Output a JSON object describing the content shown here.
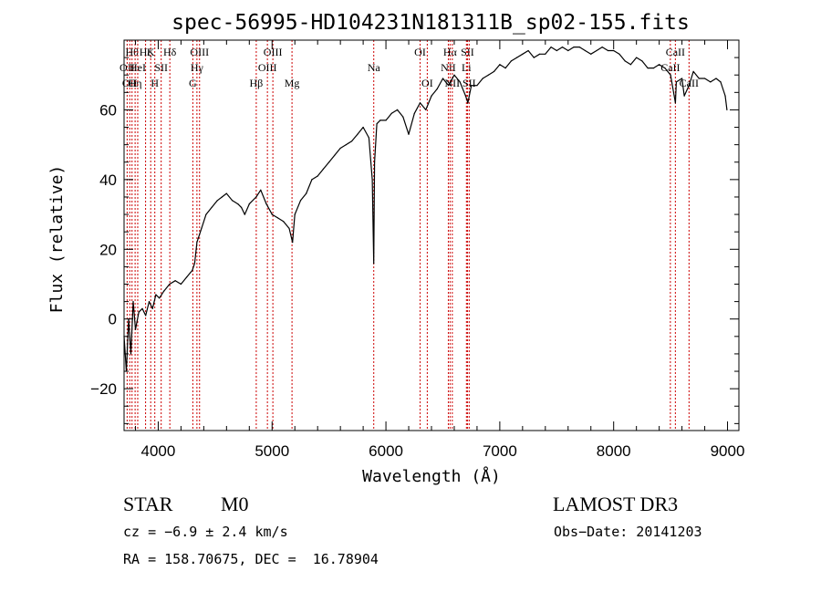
{
  "chart_data": {
    "type": "line",
    "title": "spec-56995-HD104231N181311B_sp02-155.fits",
    "xlabel": "Wavelength (Å)",
    "ylabel": "Flux (relative)",
    "xlim": [
      3700,
      9100
    ],
    "ylim": [
      -32,
      80
    ],
    "x_ticks": [
      4000,
      5000,
      6000,
      7000,
      8000,
      9000
    ],
    "y_ticks": [
      -20,
      0,
      20,
      40,
      60
    ],
    "line_color": "#000000",
    "marker_color": "#cc0000",
    "series": [
      {
        "x": [
          3700,
          3720,
          3740,
          3760,
          3780,
          3800,
          3830,
          3860,
          3890,
          3920,
          3950,
          3980,
          4010,
          4050,
          4100,
          4150,
          4200,
          4250,
          4300,
          4320,
          4340,
          4380,
          4420,
          4470,
          4520,
          4560,
          4600,
          4650,
          4700,
          4730,
          4760,
          4800,
          4860,
          4900,
          4950,
          5000,
          5050,
          5100,
          5150,
          5180,
          5200,
          5250,
          5300,
          5350,
          5400,
          5450,
          5500,
          5550,
          5600,
          5650,
          5700,
          5750,
          5800,
          5850,
          5880,
          5893,
          5900,
          5920,
          5950,
          6000,
          6050,
          6100,
          6150,
          6200,
          6250,
          6300,
          6350,
          6400,
          6450,
          6500,
          6550,
          6600,
          6650,
          6700,
          6720,
          6750,
          6800,
          6850,
          6900,
          6950,
          7000,
          7050,
          7100,
          7150,
          7200,
          7250,
          7300,
          7350,
          7400,
          7450,
          7500,
          7550,
          7600,
          7650,
          7700,
          7750,
          7800,
          7850,
          7900,
          7950,
          8000,
          8050,
          8100,
          8150,
          8200,
          8250,
          8300,
          8350,
          8400,
          8450,
          8500,
          8542,
          8550,
          8600,
          8620,
          8662,
          8700,
          8750,
          8800,
          8850,
          8900,
          8940,
          8960,
          8980,
          8995
        ],
        "y": [
          -5,
          -15,
          0,
          -10,
          5,
          -3,
          2,
          3,
          1,
          5,
          3,
          7,
          6,
          8,
          10,
          11,
          10,
          12,
          14,
          16,
          22,
          26,
          30,
          32,
          34,
          35,
          36,
          34,
          33,
          32,
          30,
          33,
          35,
          37,
          33,
          30,
          29,
          28,
          26,
          22,
          30,
          34,
          36,
          40,
          41,
          43,
          45,
          47,
          49,
          50,
          51,
          53,
          55,
          52,
          40,
          16,
          45,
          56,
          57,
          57,
          59,
          60,
          58,
          53,
          59,
          62,
          60,
          64,
          66,
          69,
          67,
          70,
          68,
          64,
          62,
          67,
          67,
          69,
          70,
          71,
          73,
          72,
          74,
          75,
          76,
          77,
          75,
          76,
          76,
          78,
          77,
          78,
          77,
          78,
          78,
          77,
          76,
          77,
          78,
          77,
          77,
          76,
          74,
          73,
          75,
          74,
          72,
          72,
          73,
          72,
          70,
          62,
          68,
          69,
          64,
          67,
          71,
          69,
          69,
          68,
          69,
          68,
          66,
          64,
          60
        ]
      }
    ],
    "lines": [
      {
        "w": 3727,
        "label": "OII",
        "row": 1
      },
      {
        "w": 3750,
        "label": "OII",
        "row": 2
      },
      {
        "w": 3770,
        "label": "Hθ",
        "row": 0
      },
      {
        "w": 3797,
        "label": "Hη",
        "row": 2
      },
      {
        "w": 3820,
        "label": "HeI",
        "row": 1
      },
      {
        "w": 3889,
        "label": "Hζ",
        "row": 0
      },
      {
        "w": 3934,
        "label": "K",
        "row": 0
      },
      {
        "w": 3970,
        "label": "H",
        "row": 2
      },
      {
        "w": 4026,
        "label": "SII",
        "row": 1
      },
      {
        "w": 4102,
        "label": "Hδ",
        "row": 0
      },
      {
        "w": 4304,
        "label": "G",
        "row": 2
      },
      {
        "w": 4340,
        "label": "Hγ",
        "row": 1
      },
      {
        "w": 4363,
        "label": "OIII",
        "row": 0
      },
      {
        "w": 4861,
        "label": "Hβ",
        "row": 2
      },
      {
        "w": 4959,
        "label": "OIII",
        "row": 1
      },
      {
        "w": 5007,
        "label": "OIII",
        "row": 0
      },
      {
        "w": 5175,
        "label": "Mg",
        "row": 2
      },
      {
        "w": 5893,
        "label": "Na",
        "row": 1
      },
      {
        "w": 6300,
        "label": "OI",
        "row": 0
      },
      {
        "w": 6363,
        "label": "OI",
        "row": 2
      },
      {
        "w": 6548,
        "label": "NII",
        "row": 1
      },
      {
        "w": 6563,
        "label": "Hα",
        "row": 0
      },
      {
        "w": 6583,
        "label": "NII",
        "row": 2
      },
      {
        "w": 6707,
        "label": "Li",
        "row": 1
      },
      {
        "w": 6716,
        "label": "SII",
        "row": 0
      },
      {
        "w": 6731,
        "label": "SII",
        "row": 2
      },
      {
        "w": 8498,
        "label": "CaII",
        "row": 1
      },
      {
        "w": 8542,
        "label": "CaII",
        "row": 0
      },
      {
        "w": 8662,
        "label": "CaII",
        "row": 2
      }
    ]
  },
  "info": {
    "class_label": "STAR",
    "subclass": "M0",
    "survey": "LAMOST DR3",
    "cz": "cz = −6.9 ± 2.4 km/s",
    "obs_date": "Obs−Date: 20141203",
    "coords": "RA = 158.70675, DEC =  16.78904"
  }
}
